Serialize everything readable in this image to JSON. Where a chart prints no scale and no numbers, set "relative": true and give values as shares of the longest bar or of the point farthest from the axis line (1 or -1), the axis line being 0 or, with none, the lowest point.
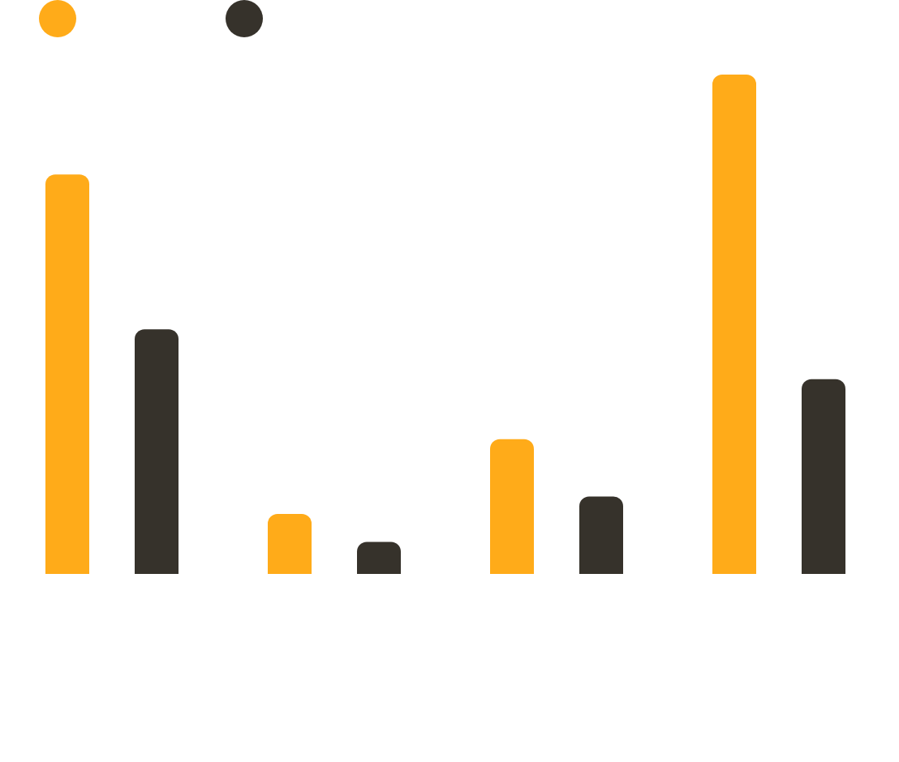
{
  "chart_data": {
    "type": "bar",
    "relative": true,
    "categories": [
      null,
      null,
      null,
      null
    ],
    "grid": false,
    "series": [
      {
        "color": "#ffab19",
        "values": [
          0.8,
          0.12,
          0.27,
          1
        ]
      },
      {
        "color": "#36322b",
        "values": [
          0.49,
          0.064,
          0.155,
          0.39
        ]
      }
    ]
  }
}
